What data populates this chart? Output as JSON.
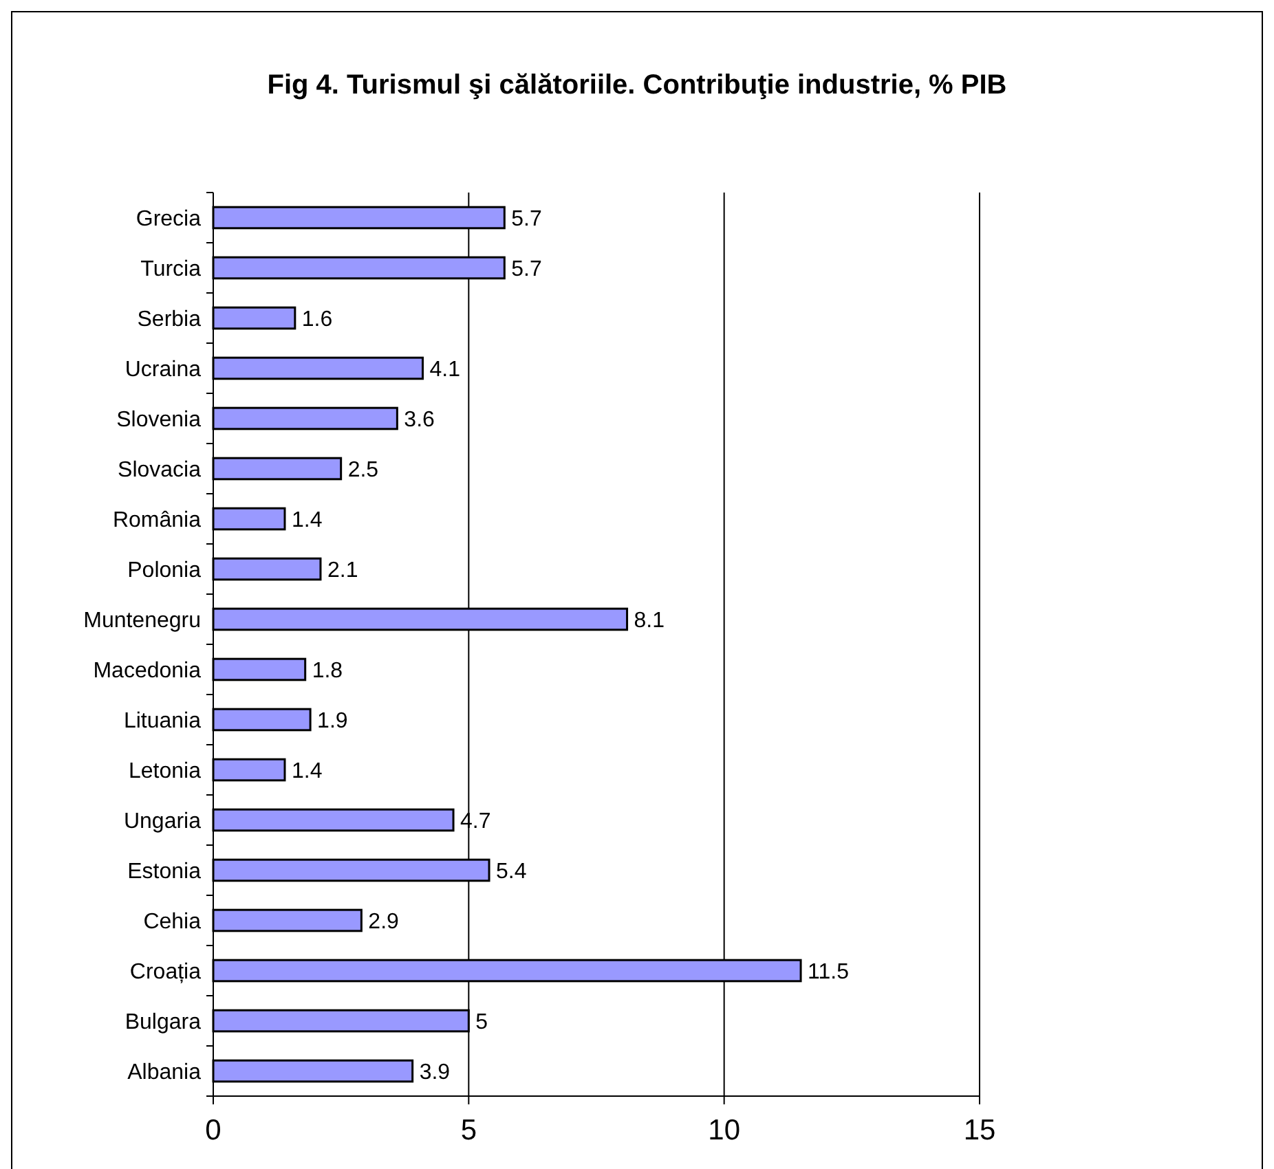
{
  "chart_data": {
    "type": "bar",
    "orientation": "horizontal",
    "title": "Fig 4. Turismul şi călătoriile. Contribuţie industrie, % PIB",
    "categories": [
      "Grecia",
      "Turcia",
      "Serbia",
      "Ucraina",
      "Slovenia",
      "Slovacia",
      "România",
      "Polonia",
      "Muntenegru",
      "Macedonia",
      "Lituania",
      "Letonia",
      "Ungaria",
      "Estonia",
      "Cehia",
      "Croația",
      "Bulgara",
      "Albania"
    ],
    "values": [
      5.7,
      5.7,
      1.6,
      4.1,
      3.6,
      2.5,
      1.4,
      2.1,
      8.1,
      1.8,
      1.9,
      1.4,
      4.7,
      5.4,
      2.9,
      11.5,
      5,
      3.9
    ],
    "color": "#9999ff",
    "xlim": [
      0,
      15
    ],
    "xticks": [
      0,
      5,
      10,
      15
    ],
    "grid": "x",
    "data_labels": true
  }
}
